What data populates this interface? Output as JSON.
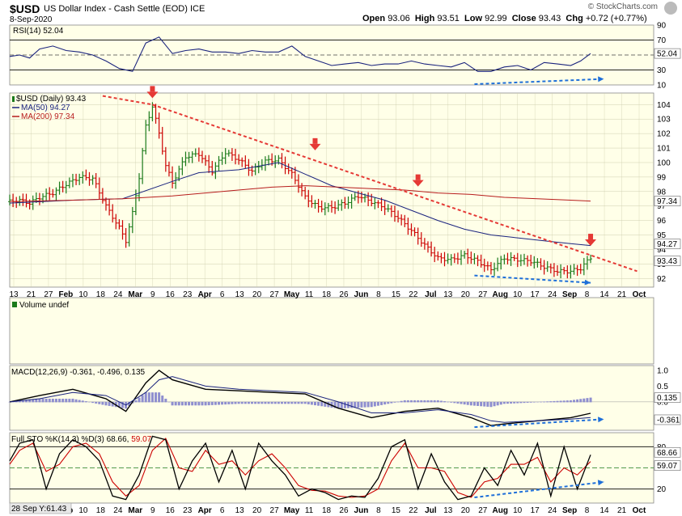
{
  "header": {
    "symbol": "$USD",
    "description": "US Dollar Index - Cash Settle (EOD)",
    "exchange": "ICE",
    "date": "8-Sep-2020",
    "open_label": "Open",
    "open": "93.06",
    "high_label": "High",
    "high": "93.51",
    "low_label": "Low",
    "low": "92.99",
    "close_label": "Close",
    "close": "93.43",
    "chg_label": "Chg",
    "chg": "+0.72 (+0.77%)",
    "brand": "© StockCharts.com"
  },
  "colors": {
    "background": "#ffffe8",
    "grid": "#cfcfb0",
    "up_bar": "#1a7a1a",
    "down_bar": "#cc0000",
    "ma50": "#1a237e",
    "ma200": "#b71c1c",
    "trend": "#e53935",
    "blue_arrow": "#1e6fd9",
    "histogram": "#8e8ecf"
  },
  "chart_data": [
    {
      "type": "line",
      "title": "RSI(14) 52.04",
      "y_ticks": [
        "90",
        "70",
        "50",
        "30",
        "10"
      ],
      "ylim": [
        10,
        90
      ],
      "reference_lines": [
        70,
        30
      ],
      "last_value_label": "52.04",
      "last_value": 52.04,
      "x": [
        1,
        4,
        7,
        10,
        14,
        18,
        22,
        26,
        30,
        34,
        38,
        42,
        46,
        50,
        54,
        58,
        62,
        66,
        70,
        74,
        78,
        82,
        86,
        90,
        94,
        98,
        102,
        106,
        110,
        114,
        118,
        122,
        126,
        130,
        134,
        138,
        142,
        146,
        150,
        154,
        158,
        162,
        166,
        170,
        173,
        176
      ],
      "values": [
        48,
        50,
        46,
        58,
        62,
        56,
        54,
        50,
        42,
        32,
        28,
        66,
        74,
        52,
        56,
        58,
        54,
        54,
        52,
        56,
        54,
        54,
        62,
        48,
        42,
        36,
        38,
        40,
        36,
        38,
        38,
        42,
        38,
        36,
        34,
        40,
        28,
        28,
        34,
        36,
        30,
        40,
        38,
        36,
        42,
        52
      ]
    },
    {
      "type": "bar",
      "title": "$USD (Daily) 93.43",
      "subtitle": "OHLC",
      "y_ticks": [
        104,
        103,
        102,
        101,
        100,
        99,
        98,
        97,
        96,
        95,
        94,
        93,
        92
      ],
      "ylim": [
        91.4,
        104.8
      ],
      "x_ticks": [
        "13",
        "21",
        "27",
        "Feb",
        "10",
        "18",
        "24",
        "Mar",
        "9",
        "16",
        "23",
        "Apr",
        "6",
        "13",
        "20",
        "27",
        "May",
        "11",
        "18",
        "26",
        "Jun",
        "8",
        "15",
        "22",
        "Jul",
        "13",
        "20",
        "27",
        "Aug",
        "10",
        "17",
        "24",
        "Sep",
        "8",
        "14",
        "21",
        "Oct"
      ],
      "close_x": [
        1,
        4,
        7,
        10,
        14,
        18,
        22,
        26,
        30,
        34,
        36,
        38,
        40,
        42,
        44,
        46,
        48,
        50,
        54,
        58,
        62,
        66,
        70,
        74,
        78,
        82,
        86,
        90,
        94,
        98,
        102,
        106,
        110,
        114,
        118,
        122,
        126,
        130,
        134,
        138,
        142,
        146,
        150,
        154,
        158,
        162,
        166,
        170,
        173,
        176
      ],
      "close": [
        97.3,
        97.4,
        97.2,
        97.6,
        97.9,
        98.5,
        99.0,
        98.9,
        97.0,
        95.5,
        94.6,
        96.5,
        99.0,
        102.5,
        103.9,
        102.0,
        99.8,
        98.6,
        100.4,
        100.6,
        99.4,
        100.7,
        100.2,
        99.4,
        100.1,
        100.2,
        99.2,
        97.6,
        96.9,
        96.9,
        97.2,
        97.7,
        97.3,
        96.9,
        96.2,
        95.3,
        94.3,
        93.4,
        93.3,
        93.6,
        93.2,
        92.6,
        93.4,
        93.3,
        93.2,
        92.8,
        92.5,
        92.5,
        92.7,
        93.43
      ],
      "last_value_label": "93.43",
      "series": [
        {
          "name": "MA(50) 94.27",
          "last_value_label": "94.27",
          "x": [
            1,
            20,
            35,
            50,
            58,
            70,
            82,
            90,
            98,
            106,
            114,
            122,
            130,
            138,
            146,
            154,
            162,
            170,
            176
          ],
          "values": [
            97.2,
            97.4,
            97.5,
            98.7,
            99.3,
            99.5,
            100.0,
            99.2,
            98.4,
            97.9,
            97.4,
            96.7,
            96.0,
            95.4,
            95.0,
            94.8,
            94.6,
            94.4,
            94.27
          ]
        },
        {
          "name": "MA(200) 97.34",
          "last_value_label": "97.34",
          "x": [
            1,
            20,
            35,
            50,
            65,
            80,
            90,
            100,
            110,
            120,
            130,
            140,
            150,
            160,
            170,
            176
          ],
          "values": [
            97.3,
            97.4,
            97.5,
            97.7,
            98.0,
            98.3,
            98.4,
            98.3,
            98.2,
            98.1,
            97.9,
            97.8,
            97.6,
            97.5,
            97.4,
            97.34
          ]
        }
      ],
      "last_value_label_2": "94.27",
      "last_value_label_3": "97.34",
      "trendline": {
        "x": [
          44,
          190
        ],
        "values": [
          104.0,
          92.5
        ]
      },
      "down_arrows_x": [
        44,
        93,
        124,
        176
      ],
      "down_arrows_y": [
        104.5,
        100.9,
        98.4,
        94.3
      ],
      "blue_arrow": {
        "x": [
          141,
          176
        ],
        "values": [
          92.2,
          91.7
        ]
      }
    },
    {
      "type": "bar",
      "title": "Volume undef"
    },
    {
      "type": "line",
      "title": "MACD(12,26,9) -0.361, -0.496, 0.135",
      "y_ticks": [
        "1.0",
        "0.5",
        "0.0",
        "-0.5"
      ],
      "ylim": [
        -0.9,
        1.15
      ],
      "last_values": [
        "0.135",
        "-0.361"
      ],
      "series": [
        {
          "name": "MACD",
          "x": [
            1,
            10,
            20,
            30,
            36,
            42,
            46,
            50,
            60,
            70,
            80,
            90,
            100,
            110,
            120,
            130,
            140,
            146,
            150,
            160,
            170,
            176
          ],
          "values": [
            0.0,
            0.2,
            0.4,
            0.1,
            -0.3,
            0.6,
            1.0,
            0.7,
            0.4,
            0.35,
            0.3,
            0.25,
            -0.2,
            -0.5,
            -0.3,
            -0.2,
            -0.5,
            -0.75,
            -0.7,
            -0.6,
            -0.5,
            -0.361
          ]
        },
        {
          "name": "Signal",
          "x": [
            1,
            10,
            20,
            30,
            36,
            42,
            46,
            50,
            60,
            70,
            80,
            90,
            100,
            110,
            120,
            130,
            140,
            146,
            150,
            160,
            170,
            176
          ],
          "values": [
            0.0,
            0.1,
            0.3,
            0.2,
            -0.1,
            0.3,
            0.7,
            0.8,
            0.5,
            0.4,
            0.35,
            0.3,
            0.0,
            -0.35,
            -0.35,
            -0.25,
            -0.4,
            -0.6,
            -0.65,
            -0.6,
            -0.55,
            -0.496
          ]
        },
        {
          "name": "Histogram",
          "x": [
            1,
            10,
            20,
            30,
            36,
            42,
            46,
            50,
            60,
            70,
            80,
            90,
            100,
            110,
            120,
            130,
            140,
            146,
            150,
            160,
            170,
            176
          ],
          "values": [
            0.0,
            0.1,
            0.1,
            -0.1,
            -0.2,
            0.3,
            0.3,
            -0.1,
            -0.1,
            -0.05,
            -0.05,
            -0.05,
            -0.2,
            -0.15,
            0.05,
            0.05,
            -0.1,
            -0.15,
            -0.05,
            0.0,
            0.05,
            0.135
          ]
        }
      ],
      "blue_arrow": {
        "x": [
          141,
          178
        ],
        "values": [
          -0.8,
          -0.55
        ]
      }
    },
    {
      "type": "line",
      "title": "Full STO %K(14,3) %D(3) 68.66, 59.07",
      "title_prefix": "Full STO %K(14,3) %D(3) 68.66,",
      "title_d_value": "59.07",
      "y_ticks": [
        "80",
        "20"
      ],
      "ylim": [
        0,
        100
      ],
      "reference_lines": [
        80,
        50,
        20
      ],
      "last_values": [
        "68.66",
        "59.07"
      ],
      "series": [
        {
          "name": "%K",
          "x": [
            1,
            4,
            8,
            12,
            16,
            20,
            24,
            28,
            32,
            36,
            40,
            44,
            48,
            52,
            56,
            60,
            64,
            68,
            72,
            76,
            80,
            84,
            88,
            92,
            96,
            100,
            104,
            108,
            112,
            116,
            120,
            124,
            128,
            132,
            136,
            140,
            144,
            148,
            152,
            156,
            160,
            164,
            168,
            172,
            176
          ],
          "values": [
            60,
            85,
            90,
            20,
            70,
            90,
            80,
            60,
            10,
            5,
            40,
            95,
            90,
            20,
            60,
            85,
            30,
            75,
            20,
            85,
            60,
            40,
            10,
            20,
            15,
            5,
            10,
            8,
            35,
            80,
            90,
            20,
            70,
            30,
            5,
            10,
            50,
            25,
            75,
            40,
            85,
            10,
            80,
            20,
            68.66
          ]
        },
        {
          "name": "%D",
          "x": [
            1,
            4,
            8,
            12,
            16,
            20,
            24,
            28,
            32,
            36,
            40,
            44,
            48,
            52,
            56,
            60,
            64,
            68,
            72,
            76,
            80,
            84,
            88,
            92,
            96,
            100,
            104,
            108,
            112,
            116,
            120,
            124,
            128,
            132,
            136,
            140,
            144,
            148,
            152,
            156,
            160,
            164,
            168,
            172,
            176
          ],
          "values": [
            55,
            75,
            85,
            45,
            55,
            80,
            85,
            70,
            30,
            10,
            25,
            75,
            92,
            50,
            45,
            75,
            55,
            60,
            40,
            60,
            70,
            50,
            25,
            18,
            17,
            10,
            8,
            10,
            20,
            60,
            85,
            50,
            50,
            45,
            15,
            8,
            30,
            35,
            55,
            55,
            65,
            30,
            50,
            40,
            59.07
          ]
        }
      ],
      "blue_arrow": {
        "x": [
          141,
          178
        ],
        "values": [
          8,
          30
        ]
      }
    }
  ],
  "footer": {
    "cursor_label": "28 Sep Y:61.43"
  }
}
